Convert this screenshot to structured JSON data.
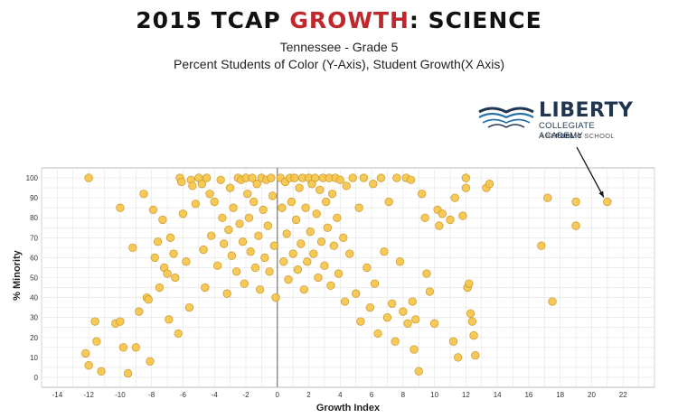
{
  "header": {
    "title_prefix": "2015 TCAP ",
    "title_accent": "GROWTH",
    "title_suffix": ":  SCIENCE",
    "subtitle_1": "Tennessee - Grade 5",
    "subtitle_2": "Percent Students of Color (Y-Axis), Student Growth(X Axis)"
  },
  "logo": {
    "name": "LIBERTY",
    "line_1": "COLLEGIATE ACADEMY",
    "line_2_pre": "A RE",
    "line_2_bold": "PUBLIC",
    "line_2_post": " SCHOOL",
    "icon": "open-book-icon"
  },
  "colors": {
    "point_fill": "#f6c54a",
    "point_stroke": "#c9962a",
    "grid": "#e4e4e4",
    "zero_line": "#777777",
    "accent": "#c0282d",
    "logo_navy": "#1f3550",
    "logo_blue": "#2a73a8"
  },
  "chart_data": {
    "type": "scatter",
    "xlabel": "Growth Index",
    "ylabel": "% Minority",
    "xlim": [
      -15,
      24
    ],
    "ylim": [
      -5,
      105
    ],
    "xticks": [
      -14,
      -12,
      -10,
      -8,
      -6,
      -4,
      -2,
      0,
      2,
      4,
      6,
      8,
      10,
      12,
      14,
      16,
      18,
      20,
      22
    ],
    "yticks": [
      0,
      10,
      20,
      30,
      40,
      50,
      60,
      70,
      80,
      90,
      100
    ],
    "grid": true,
    "annotation": {
      "label": "Liberty Collegiate Academy",
      "x": 21.0,
      "y": 88
    },
    "points": [
      [
        -12,
        100
      ],
      [
        -12.2,
        12
      ],
      [
        -12,
        6
      ],
      [
        -11.6,
        28
      ],
      [
        -11.5,
        18
      ],
      [
        -11.2,
        3
      ],
      [
        -10.3,
        27
      ],
      [
        -10,
        28
      ],
      [
        -10,
        85
      ],
      [
        -9.8,
        15
      ],
      [
        -9.5,
        2
      ],
      [
        -9.2,
        65
      ],
      [
        -9,
        15
      ],
      [
        -8.8,
        33
      ],
      [
        -8.5,
        92
      ],
      [
        -8.3,
        40
      ],
      [
        -8.2,
        39
      ],
      [
        -8.1,
        8
      ],
      [
        -7.9,
        84
      ],
      [
        -7.8,
        60
      ],
      [
        -7.6,
        68
      ],
      [
        -7.5,
        45
      ],
      [
        -7.3,
        79
      ],
      [
        -7.2,
        55
      ],
      [
        -7,
        52
      ],
      [
        -6.9,
        29
      ],
      [
        -6.8,
        70
      ],
      [
        -6.6,
        62
      ],
      [
        -6.5,
        50
      ],
      [
        -6.3,
        22
      ],
      [
        -6.2,
        100
      ],
      [
        -6.1,
        98
      ],
      [
        -6,
        82
      ],
      [
        -5.8,
        58
      ],
      [
        -5.6,
        35
      ],
      [
        -5.5,
        99
      ],
      [
        -5.4,
        96
      ],
      [
        -5.2,
        87
      ],
      [
        -5,
        100
      ],
      [
        -4.8,
        97
      ],
      [
        -4.7,
        64
      ],
      [
        -4.6,
        45
      ],
      [
        -4.5,
        100
      ],
      [
        -4.3,
        92
      ],
      [
        -4.2,
        71
      ],
      [
        -4,
        88
      ],
      [
        -3.8,
        56
      ],
      [
        -3.6,
        99
      ],
      [
        -3.5,
        80
      ],
      [
        -3.4,
        67
      ],
      [
        -3.2,
        42
      ],
      [
        -3.1,
        74
      ],
      [
        -3,
        95
      ],
      [
        -2.9,
        61
      ],
      [
        -2.8,
        85
      ],
      [
        -2.6,
        53
      ],
      [
        -2.5,
        100
      ],
      [
        -2.4,
        77
      ],
      [
        -2.3,
        99
      ],
      [
        -2.2,
        68
      ],
      [
        -2.1,
        47
      ],
      [
        -2,
        100
      ],
      [
        -1.9,
        92
      ],
      [
        -1.8,
        80
      ],
      [
        -1.7,
        63
      ],
      [
        -1.6,
        100
      ],
      [
        -1.5,
        88
      ],
      [
        -1.4,
        55
      ],
      [
        -1.3,
        97
      ],
      [
        -1.2,
        71
      ],
      [
        -1.1,
        44
      ],
      [
        -1,
        100
      ],
      [
        -0.9,
        84
      ],
      [
        -0.8,
        60
      ],
      [
        -0.7,
        99
      ],
      [
        -0.6,
        76
      ],
      [
        -0.5,
        53
      ],
      [
        -0.4,
        100
      ],
      [
        -0.3,
        91
      ],
      [
        -0.2,
        66
      ],
      [
        -0.1,
        40
      ],
      [
        0.2,
        100
      ],
      [
        0.3,
        85
      ],
      [
        0.4,
        58
      ],
      [
        0.5,
        98
      ],
      [
        0.6,
        72
      ],
      [
        0.7,
        49
      ],
      [
        0.8,
        100
      ],
      [
        0.9,
        88
      ],
      [
        1,
        62
      ],
      [
        1.1,
        100
      ],
      [
        1.2,
        79
      ],
      [
        1.3,
        54
      ],
      [
        1.4,
        95
      ],
      [
        1.5,
        67
      ],
      [
        1.6,
        100
      ],
      [
        1.7,
        44
      ],
      [
        1.8,
        85
      ],
      [
        1.9,
        58
      ],
      [
        2,
        100
      ],
      [
        2.1,
        73
      ],
      [
        2.2,
        97
      ],
      [
        2.3,
        62
      ],
      [
        2.4,
        100
      ],
      [
        2.5,
        82
      ],
      [
        2.6,
        50
      ],
      [
        2.7,
        94
      ],
      [
        2.8,
        68
      ],
      [
        2.9,
        100
      ],
      [
        3,
        56
      ],
      [
        3.1,
        88
      ],
      [
        3.2,
        75
      ],
      [
        3.3,
        100
      ],
      [
        3.4,
        46
      ],
      [
        3.5,
        92
      ],
      [
        3.6,
        66
      ],
      [
        3.7,
        100
      ],
      [
        3.8,
        80
      ],
      [
        3.9,
        52
      ],
      [
        4,
        99
      ],
      [
        4.2,
        70
      ],
      [
        4.3,
        38
      ],
      [
        4.4,
        96
      ],
      [
        4.6,
        62
      ],
      [
        4.8,
        100
      ],
      [
        5,
        42
      ],
      [
        5.2,
        85
      ],
      [
        5.3,
        28
      ],
      [
        5.5,
        100
      ],
      [
        5.7,
        55
      ],
      [
        5.9,
        35
      ],
      [
        6.1,
        97
      ],
      [
        6.2,
        47
      ],
      [
        6.4,
        22
      ],
      [
        6.6,
        100
      ],
      [
        6.8,
        63
      ],
      [
        7,
        30
      ],
      [
        7.1,
        88
      ],
      [
        7.3,
        37
      ],
      [
        7.5,
        18
      ],
      [
        7.6,
        100
      ],
      [
        7.8,
        58
      ],
      [
        8,
        33
      ],
      [
        8.2,
        100
      ],
      [
        8.3,
        27
      ],
      [
        8.5,
        99
      ],
      [
        8.6,
        38
      ],
      [
        8.7,
        14
      ],
      [
        8.8,
        29
      ],
      [
        9,
        3
      ],
      [
        9.2,
        92
      ],
      [
        9.4,
        80
      ],
      [
        9.5,
        52
      ],
      [
        9.7,
        43
      ],
      [
        10,
        27
      ],
      [
        10.2,
        84
      ],
      [
        10.3,
        76
      ],
      [
        10.5,
        82
      ],
      [
        11,
        79
      ],
      [
        11.2,
        18
      ],
      [
        11.3,
        90
      ],
      [
        11.5,
        10
      ],
      [
        11.8,
        81
      ],
      [
        12,
        100
      ],
      [
        12,
        95
      ],
      [
        12.1,
        45
      ],
      [
        12.2,
        47
      ],
      [
        12.3,
        32
      ],
      [
        12.4,
        28
      ],
      [
        12.5,
        21
      ],
      [
        12.6,
        11
      ],
      [
        13.3,
        95
      ],
      [
        13.5,
        97
      ],
      [
        16.8,
        66
      ],
      [
        17.2,
        90
      ],
      [
        17.5,
        38
      ],
      [
        19,
        88
      ],
      [
        19,
        76
      ],
      [
        21,
        88
      ]
    ]
  }
}
